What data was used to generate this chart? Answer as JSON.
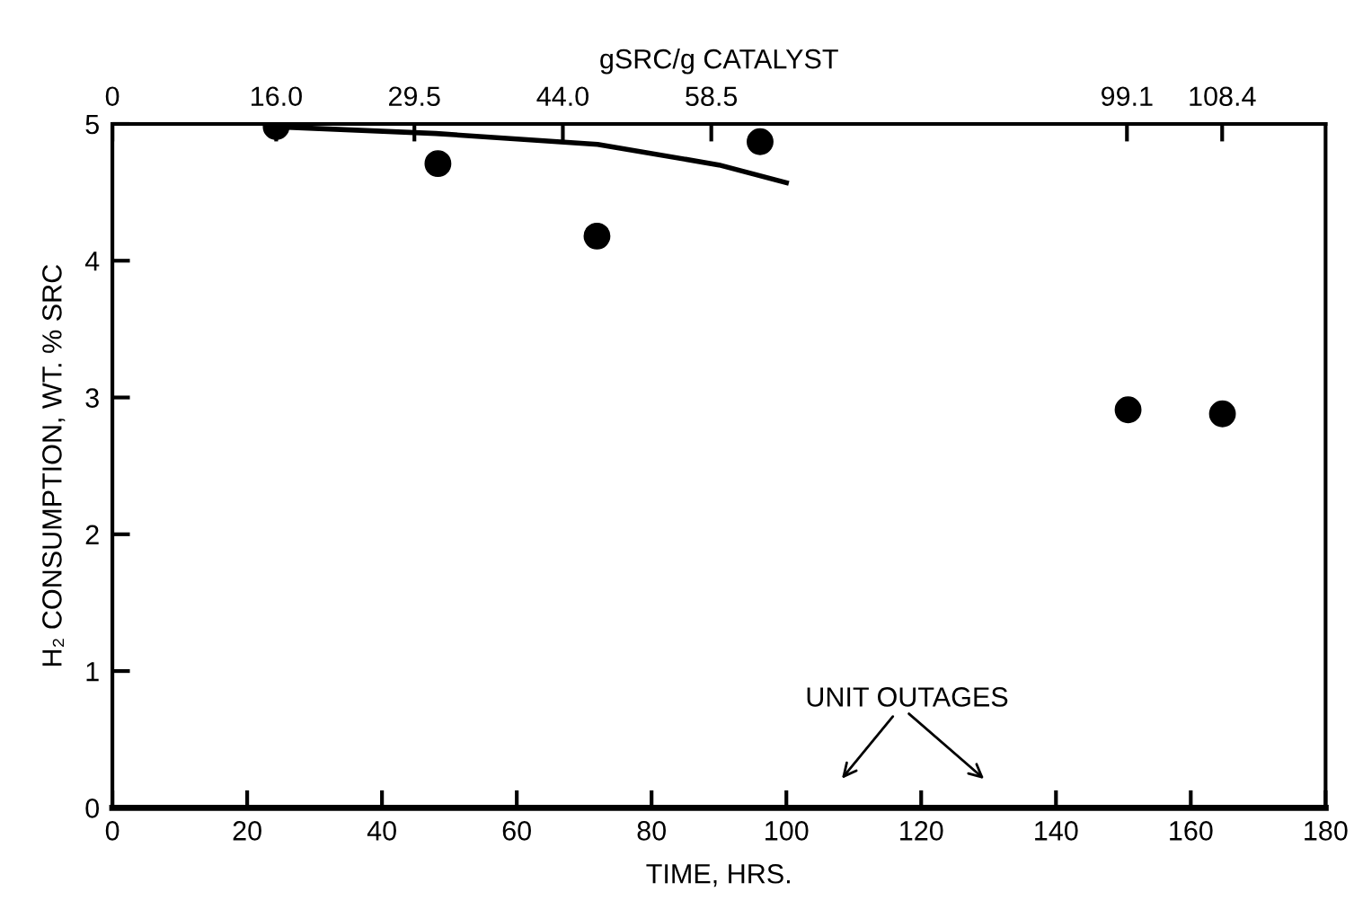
{
  "chart_data": {
    "type": "scatter",
    "xlabel": "TIME, HRS.",
    "ylabel": "H₂ CONSUMPTION, WT. % SRC",
    "x2label": "gSRC/g CATALYST",
    "xlim": [
      0,
      180
    ],
    "xticks": [
      0,
      20,
      40,
      60,
      80,
      100,
      120,
      140,
      160,
      180
    ],
    "ylim": [
      0,
      5
    ],
    "yticks": [
      0,
      1,
      2,
      3,
      4,
      5
    ],
    "x2lim": [
      0,
      118.5
    ],
    "x2ticks": [
      0,
      {
        "value": 16,
        "label": "16.0"
      },
      29.5,
      {
        "value": 44,
        "label": "44.0"
      },
      58.5,
      99.1,
      108.4
    ],
    "grid": false,
    "legend": false,
    "series": [
      {
        "color": "#000000",
        "marker": "circle",
        "x": [
          24.3,
          48.3,
          71.9,
          96.1,
          150.7,
          164.7
        ],
        "values": [
          4.98,
          4.71,
          4.18,
          4.87,
          2.91,
          2.88
        ]
      },
      {
        "type": "line",
        "color": "#000000",
        "marker": "none",
        "line_style": "solid",
        "x": [
          24,
          48,
          72,
          90,
          100
        ],
        "values": [
          4.98,
          4.93,
          4.85,
          4.7,
          4.57
        ]
      }
    ],
    "annotations": [
      "UNIT OUTAGES"
    ]
  }
}
